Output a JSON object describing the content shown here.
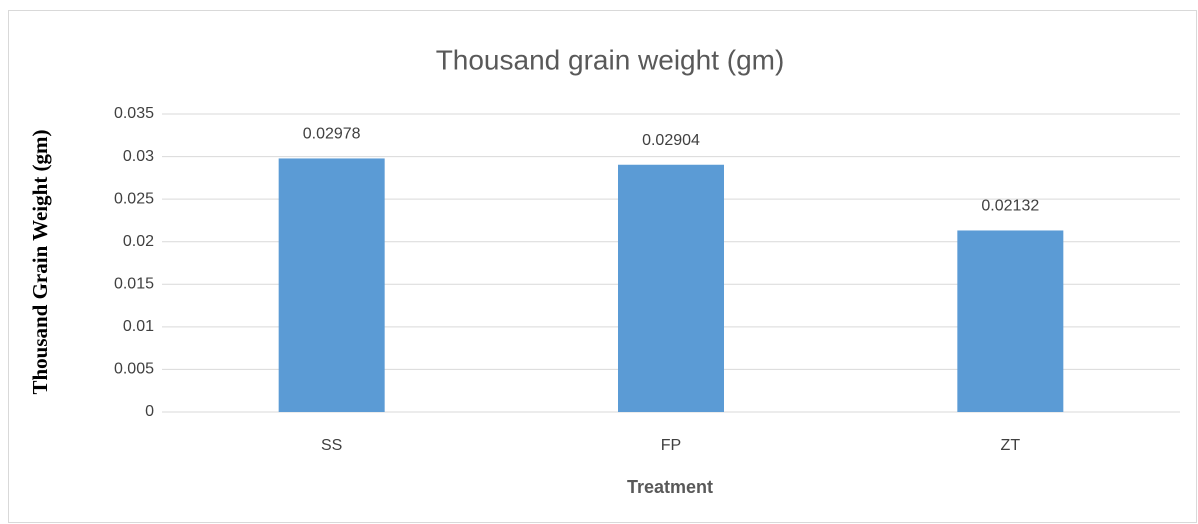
{
  "chart_data": {
    "type": "bar",
    "title": "Thousand grain weight (gm)",
    "x_label": "Treatment",
    "y_label": "Thousand Grain Weight (gm)",
    "categories": [
      "SS",
      "FP",
      "ZT"
    ],
    "values": [
      0.02978,
      0.02904,
      0.02132
    ],
    "color": "#5b9bd5",
    "ylim": [
      0,
      0.035
    ],
    "yticks": [
      0,
      0.005,
      0.01,
      0.015,
      0.02,
      0.025,
      0.03,
      0.035
    ],
    "grid": true
  }
}
